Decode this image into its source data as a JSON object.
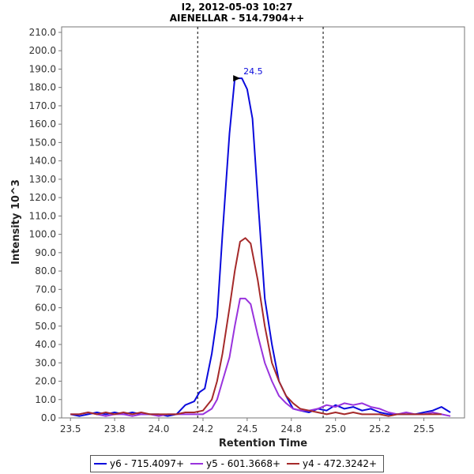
{
  "title_line1": "I2, 2012-05-03 10:27",
  "title_line2": "AIENELLAR - 514.7904++",
  "chart_data": {
    "type": "line",
    "xlabel": "Retention Time",
    "ylabel": "Intensity 10^3",
    "xlim": [
      23.45,
      25.73
    ],
    "ylim": [
      0,
      213
    ],
    "x_ticks": [
      "23.5",
      "23.8",
      "24.0",
      "24.2",
      "24.5",
      "24.8",
      "25.0",
      "25.2",
      "25.5"
    ],
    "x_tick_values": [
      23.5,
      23.75,
      24.0,
      24.25,
      24.5,
      24.75,
      25.0,
      25.25,
      25.5
    ],
    "y_ticks": [
      "0.0",
      "10.0",
      "20.0",
      "30.0",
      "40.0",
      "50.0",
      "60.0",
      "70.0",
      "80.0",
      "90.0",
      "100.0",
      "110.0",
      "120.0",
      "130.0",
      "140.0",
      "150.0",
      "160.0",
      "170.0",
      "180.0",
      "190.0",
      "200.0",
      "210.0"
    ],
    "vlines": [
      24.22,
      24.93
    ],
    "peak_annotation": {
      "x": 24.47,
      "y": 185,
      "label": "24.5"
    },
    "series": [
      {
        "name": "y6 - 715.4097+",
        "color": "#0a0adc",
        "points": [
          [
            23.5,
            2
          ],
          [
            23.55,
            1
          ],
          [
            23.6,
            2
          ],
          [
            23.65,
            3
          ],
          [
            23.7,
            2
          ],
          [
            23.75,
            3
          ],
          [
            23.8,
            2
          ],
          [
            23.85,
            3
          ],
          [
            23.9,
            2
          ],
          [
            23.95,
            2
          ],
          [
            24.0,
            2
          ],
          [
            24.05,
            1
          ],
          [
            24.1,
            2
          ],
          [
            24.15,
            7
          ],
          [
            24.2,
            9
          ],
          [
            24.23,
            14
          ],
          [
            24.26,
            16
          ],
          [
            24.3,
            35
          ],
          [
            24.33,
            55
          ],
          [
            24.36,
            100
          ],
          [
            24.4,
            155
          ],
          [
            24.43,
            185
          ],
          [
            24.47,
            185
          ],
          [
            24.5,
            179
          ],
          [
            24.53,
            163
          ],
          [
            24.56,
            120
          ],
          [
            24.6,
            65
          ],
          [
            24.64,
            40
          ],
          [
            24.68,
            20
          ],
          [
            24.72,
            12
          ],
          [
            24.76,
            5
          ],
          [
            24.8,
            4
          ],
          [
            24.85,
            3
          ],
          [
            24.9,
            5
          ],
          [
            24.95,
            4
          ],
          [
            25.0,
            7
          ],
          [
            25.05,
            5
          ],
          [
            25.1,
            6
          ],
          [
            25.15,
            4
          ],
          [
            25.2,
            5
          ],
          [
            25.25,
            3
          ],
          [
            25.3,
            2
          ],
          [
            25.35,
            2
          ],
          [
            25.4,
            2
          ],
          [
            25.45,
            2
          ],
          [
            25.5,
            3
          ],
          [
            25.55,
            4
          ],
          [
            25.6,
            6
          ],
          [
            25.65,
            3
          ]
        ]
      },
      {
        "name": "y5 - 601.3668+",
        "color": "#9933dd",
        "points": [
          [
            23.5,
            2
          ],
          [
            23.55,
            2
          ],
          [
            23.6,
            3
          ],
          [
            23.65,
            2
          ],
          [
            23.7,
            1
          ],
          [
            23.75,
            2
          ],
          [
            23.8,
            2
          ],
          [
            23.85,
            1
          ],
          [
            23.9,
            2
          ],
          [
            23.95,
            2
          ],
          [
            24.0,
            1
          ],
          [
            24.05,
            2
          ],
          [
            24.1,
            2
          ],
          [
            24.15,
            2
          ],
          [
            24.2,
            2
          ],
          [
            24.25,
            2
          ],
          [
            24.3,
            5
          ],
          [
            24.33,
            10
          ],
          [
            24.36,
            20
          ],
          [
            24.4,
            33
          ],
          [
            24.43,
            50
          ],
          [
            24.46,
            65
          ],
          [
            24.49,
            65
          ],
          [
            24.52,
            62
          ],
          [
            24.56,
            45
          ],
          [
            24.6,
            30
          ],
          [
            24.64,
            20
          ],
          [
            24.68,
            12
          ],
          [
            24.72,
            8
          ],
          [
            24.76,
            5
          ],
          [
            24.8,
            4
          ],
          [
            24.85,
            4
          ],
          [
            24.9,
            5
          ],
          [
            24.95,
            7
          ],
          [
            25.0,
            6
          ],
          [
            25.05,
            8
          ],
          [
            25.1,
            7
          ],
          [
            25.15,
            8
          ],
          [
            25.2,
            6
          ],
          [
            25.25,
            5
          ],
          [
            25.3,
            3
          ],
          [
            25.35,
            2
          ],
          [
            25.4,
            3
          ],
          [
            25.45,
            2
          ],
          [
            25.5,
            2
          ],
          [
            25.55,
            3
          ],
          [
            25.6,
            2
          ],
          [
            25.65,
            1
          ]
        ]
      },
      {
        "name": "y4 - 472.3242+",
        "color": "#a52a2a",
        "points": [
          [
            23.5,
            2
          ],
          [
            23.55,
            2
          ],
          [
            23.6,
            3
          ],
          [
            23.65,
            2
          ],
          [
            23.7,
            3
          ],
          [
            23.75,
            2
          ],
          [
            23.8,
            3
          ],
          [
            23.85,
            2
          ],
          [
            23.9,
            3
          ],
          [
            23.95,
            2
          ],
          [
            24.0,
            2
          ],
          [
            24.05,
            2
          ],
          [
            24.1,
            2
          ],
          [
            24.15,
            3
          ],
          [
            24.2,
            3
          ],
          [
            24.25,
            4
          ],
          [
            24.3,
            10
          ],
          [
            24.33,
            20
          ],
          [
            24.36,
            35
          ],
          [
            24.4,
            60
          ],
          [
            24.43,
            80
          ],
          [
            24.46,
            96
          ],
          [
            24.49,
            98
          ],
          [
            24.52,
            95
          ],
          [
            24.56,
            75
          ],
          [
            24.6,
            50
          ],
          [
            24.64,
            30
          ],
          [
            24.68,
            20
          ],
          [
            24.72,
            12
          ],
          [
            24.76,
            8
          ],
          [
            24.8,
            5
          ],
          [
            24.85,
            4
          ],
          [
            24.9,
            3
          ],
          [
            24.95,
            2
          ],
          [
            25.0,
            3
          ],
          [
            25.05,
            2
          ],
          [
            25.1,
            3
          ],
          [
            25.15,
            2
          ],
          [
            25.2,
            2
          ],
          [
            25.25,
            2
          ],
          [
            25.3,
            1
          ],
          [
            25.35,
            2
          ],
          [
            25.4,
            2
          ],
          [
            25.45,
            2
          ],
          [
            25.5,
            2
          ],
          [
            25.55,
            2
          ],
          [
            25.6,
            2
          ]
        ]
      }
    ]
  }
}
